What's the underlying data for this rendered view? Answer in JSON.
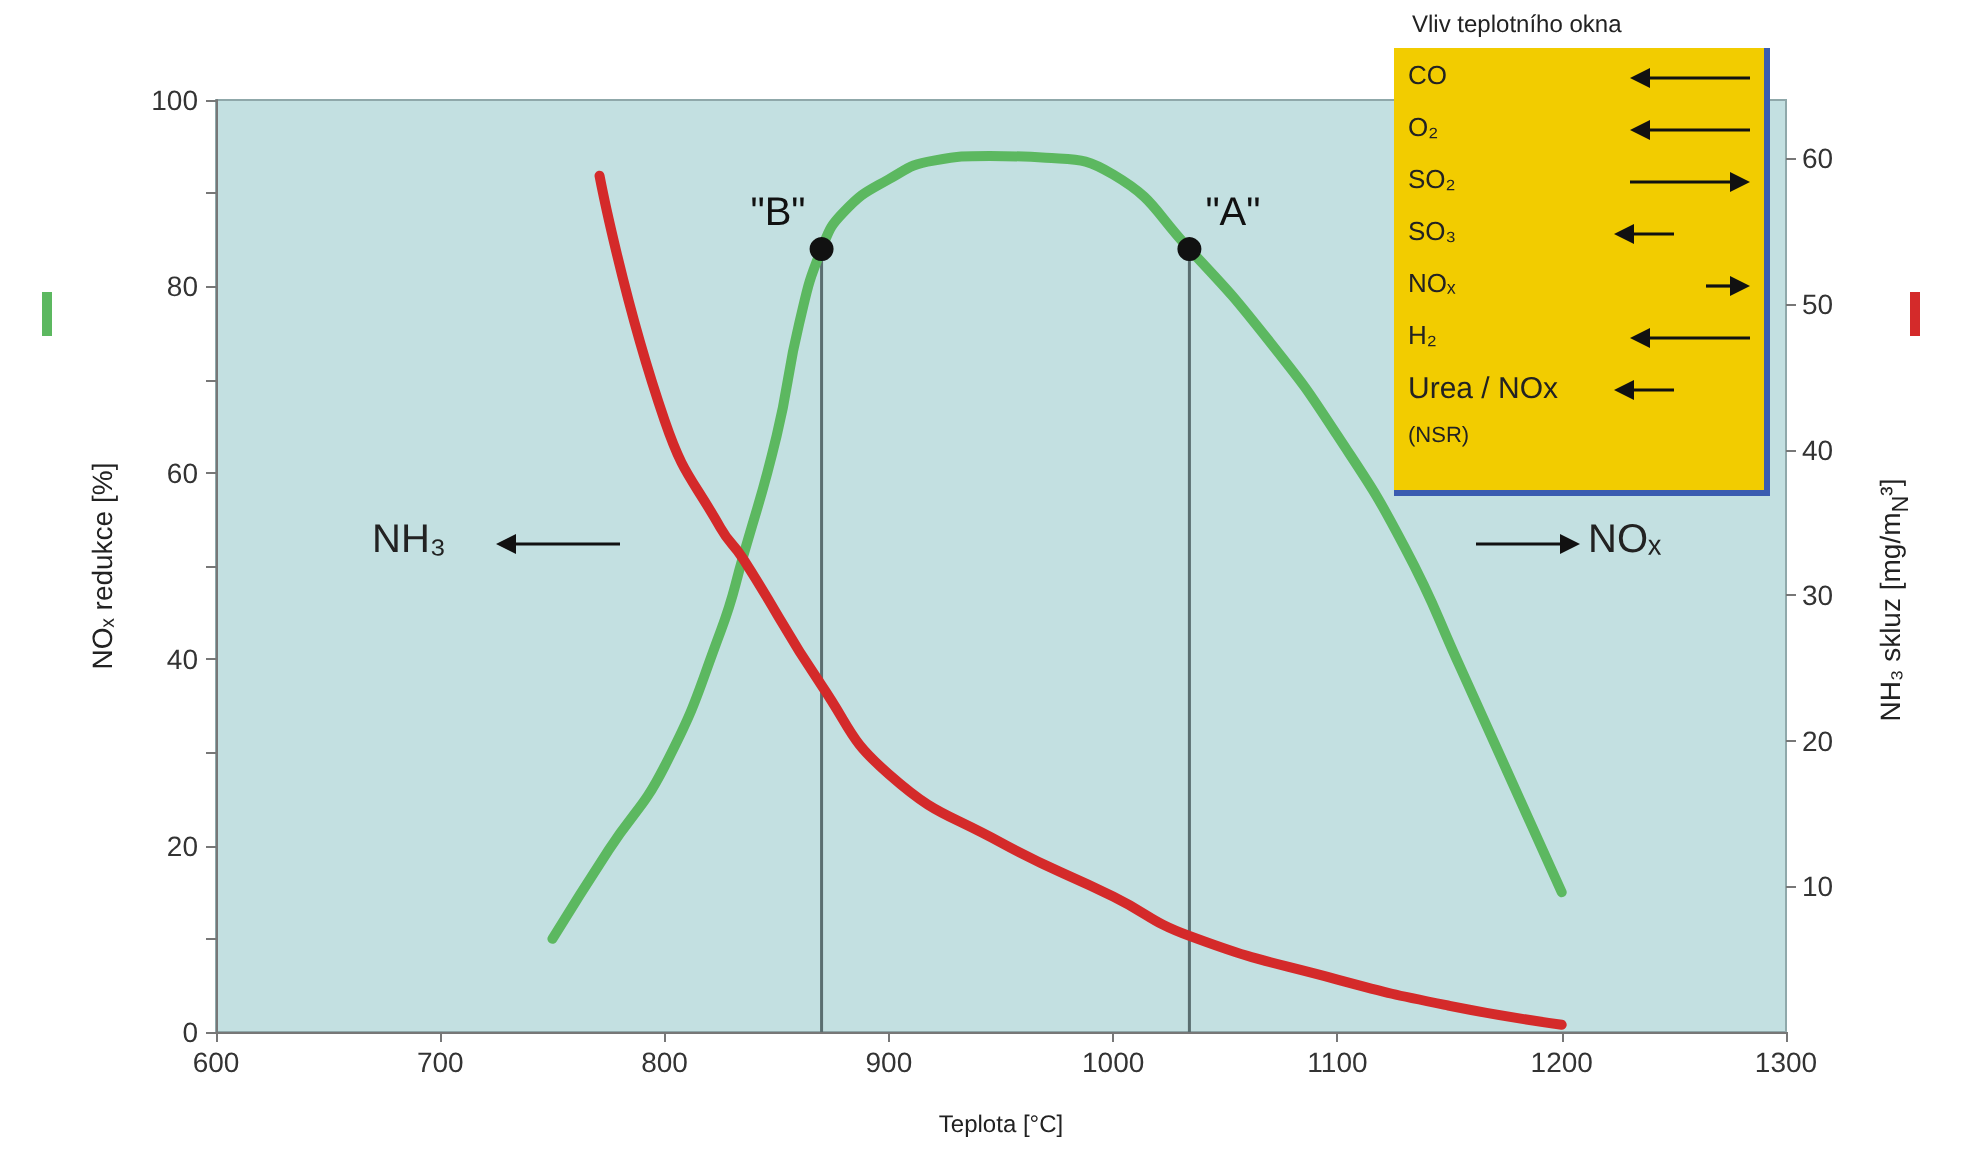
{
  "chart_data": {
    "type": "line",
    "xlabel": "Teplota [°C]",
    "ylabel": "NOₓ redukce [%]",
    "y2label": "NH₃ skluz [mg/m$_{N}$³]",
    "series": [
      {
        "color": "#5cb860",
        "x": [
          750,
          775,
          800,
          825,
          835,
          850,
          860,
          870,
          880,
          900,
          920,
          945,
          970,
          1000,
          1034,
          1070,
          1100,
          1130,
          1155,
          1200
        ],
        "values": [
          10,
          19.5,
          28.5,
          43,
          51,
          64,
          76,
          84,
          88,
          91.5,
          93.5,
          94,
          93.8,
          92,
          84,
          74,
          64,
          52,
          39,
          15
        ]
      },
      {
        "color": "#d42a2a",
        "axis": "y2",
        "x": [
          771,
          800,
          825,
          835,
          870,
          900,
          950,
          1000,
          1034,
          1100,
          1150,
          1200
        ],
        "values": [
          58.8,
          42,
          34.6,
          32.5,
          23.8,
          17.7,
          13,
          9.3,
          6.6,
          3.6,
          1.8,
          0.5
        ]
      }
    ],
    "xlim": [
      600,
      1300
    ],
    "xticks": [
      600,
      700,
      800,
      900,
      1000,
      1100,
      1200,
      1300
    ],
    "ylim": [
      0,
      100
    ],
    "yticks": [
      0,
      {
        "value": 10,
        "label": null
      },
      20,
      {
        "value": 30,
        "label": null
      },
      40,
      {
        "value": 50,
        "label": null
      },
      60,
      {
        "value": 70,
        "label": null
      },
      80,
      {
        "value": 90,
        "label": null
      },
      100
    ],
    "y2lim": [
      0,
      64
    ],
    "y2ticks": [
      10,
      20,
      30,
      40,
      50,
      60
    ],
    "ref_lines": [
      {
        "axis": "x",
        "value": 870,
        "label": null
      },
      {
        "axis": "x",
        "value": 1034,
        "label": null
      }
    ],
    "grid": false,
    "marker": "none",
    "line_style": "solid",
    "annotations": [
      {
        "text": "\"B\"",
        "x": 870,
        "y": 84
      },
      {
        "text": "\"A\"",
        "x": 1034,
        "y": 84
      },
      "NH₃",
      "NOₓ",
      "Vliv teplotního okna",
      "CO",
      "O₂",
      "SO₂",
      "SO₃",
      "NOₓ",
      "H₂",
      "Urea / NOx",
      "(NSR)"
    ]
  }
}
